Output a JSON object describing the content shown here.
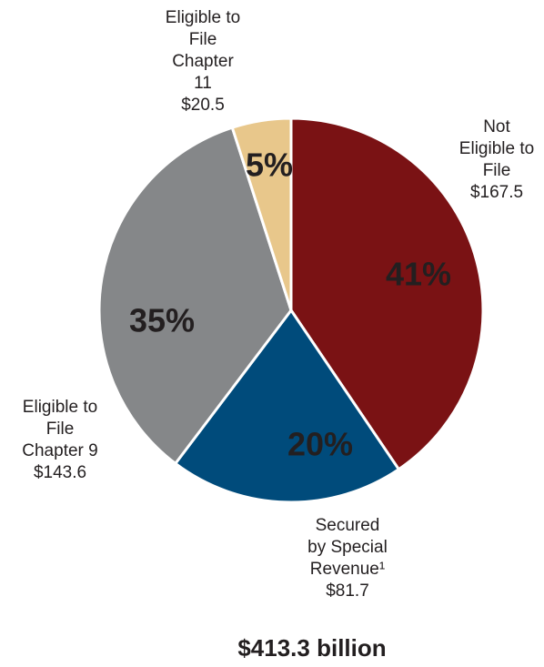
{
  "chart_data": {
    "type": "pie",
    "total_label": "$413.3 billion",
    "slices": [
      {
        "percent_label": "41%",
        "label_lines": [
          "Not",
          "Eligible to",
          "File",
          "$167.5"
        ],
        "value": 167.5,
        "color": "#7a1214"
      },
      {
        "percent_label": "20%",
        "label_lines": [
          "Secured",
          "by Special",
          "Revenue¹",
          "$81.7"
        ],
        "value": 81.7,
        "color": "#004b7b"
      },
      {
        "percent_label": "35%",
        "label_lines": [
          "Eligible to",
          "File",
          "Chapter 9",
          "$143.6"
        ],
        "value": 143.6,
        "color": "#858789"
      },
      {
        "percent_label": "5%",
        "label_lines": [
          "Eligible to",
          "File",
          "Chapter",
          "11",
          "$20.5"
        ],
        "value": 20.5,
        "color": "#e8c78b"
      }
    ]
  }
}
